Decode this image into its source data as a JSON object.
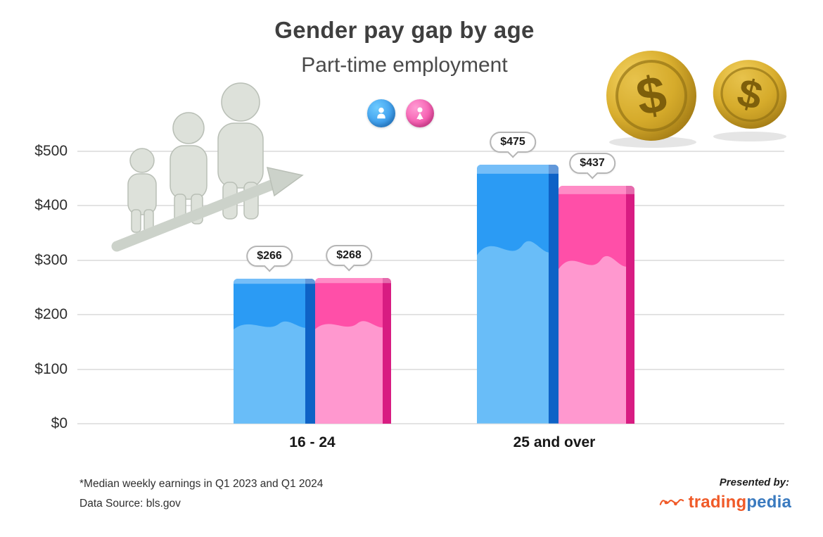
{
  "chart_data": {
    "type": "bar",
    "title": "Gender pay gap by age",
    "subtitle": "Part-time employment",
    "categories": [
      "16 - 24",
      "25 and over"
    ],
    "series": [
      {
        "name": "male",
        "color": "#2B9BF4",
        "values": [
          266,
          475
        ],
        "labels": [
          "$266",
          "$475"
        ]
      },
      {
        "name": "female",
        "color": "#FF4FA8",
        "values": [
          268,
          437
        ],
        "labels": [
          "$268",
          "$437"
        ]
      }
    ],
    "value_prefix": "$",
    "ylim": [
      0,
      500
    ],
    "yticks": [
      "$0",
      "$100",
      "$200",
      "$300",
      "$400",
      "$500"
    ],
    "grid": true,
    "legend_position": "top-center"
  },
  "footer": {
    "note": "*Median weekly earnings in Q1 2023 and Q1 2024",
    "source": "Data Source: bls.gov",
    "presented_by": "Presented by:",
    "brand": {
      "part1": "trading",
      "part2": "pedia"
    }
  },
  "icons": {
    "male_legend": "male-person-icon",
    "female_legend": "female-person-icon",
    "coins": "dollar-coins-icon",
    "growth": "growth-people-arrow-illustration",
    "brand_mark": "line-chart-squiggle-icon"
  },
  "colors": {
    "male_main": "#2B9BF4",
    "male_light": "#69BDF8",
    "male_side": "#0E62C6",
    "female_main": "#FF4FA8",
    "female_light": "#FF98CF",
    "female_side": "#D81C82",
    "grid": "#E3E3E3",
    "coin_gold": "#D9AE2E",
    "brand_orange": "#F05A28",
    "brand_blue": "#3A7ABF"
  }
}
